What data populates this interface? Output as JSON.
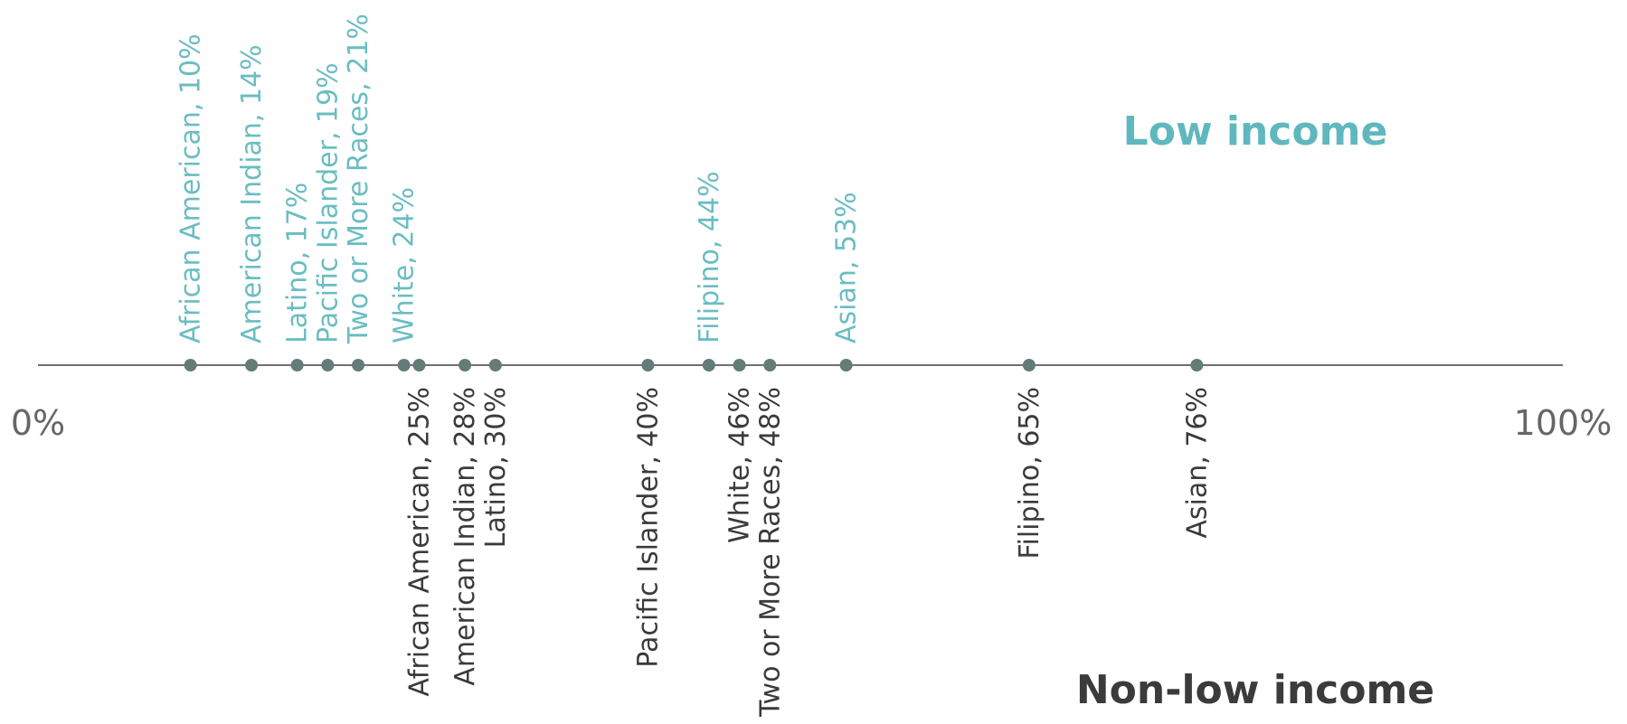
{
  "chart_data": {
    "type": "scatter",
    "xlim": [
      0,
      100
    ],
    "tick_labels": {
      "min": "0%",
      "max": "100%"
    },
    "colors": {
      "axis": "#707070",
      "dot": "#647b78",
      "low_income": "#6bbdc2",
      "non_low_income": "#3b3b3b"
    },
    "series": [
      {
        "name": "Low income",
        "points": [
          {
            "x": 10,
            "label": "African American, 10%"
          },
          {
            "x": 14,
            "label": "American Indian, 14%"
          },
          {
            "x": 17,
            "label": "Latino, 17%"
          },
          {
            "x": 19,
            "label": "Pacific Islander, 19%"
          },
          {
            "x": 21,
            "label": "Two or More Races, 21%"
          },
          {
            "x": 24,
            "label": "White, 24%"
          },
          {
            "x": 44,
            "label": "Filipino, 44%"
          },
          {
            "x": 53,
            "label": "Asian, 53%"
          }
        ]
      },
      {
        "name": "Non-low income",
        "points": [
          {
            "x": 25,
            "label": "African American, 25%"
          },
          {
            "x": 28,
            "label": "American Indian, 28%"
          },
          {
            "x": 30,
            "label": "Latino, 30%"
          },
          {
            "x": 40,
            "label": "Pacific Islander, 40%"
          },
          {
            "x": 46,
            "label": "White, 46%"
          },
          {
            "x": 48,
            "label": "Two or More Races, 48%"
          },
          {
            "x": 65,
            "label": "Filipino, 65%"
          },
          {
            "x": 76,
            "label": "Asian, 76%"
          }
        ]
      }
    ]
  }
}
